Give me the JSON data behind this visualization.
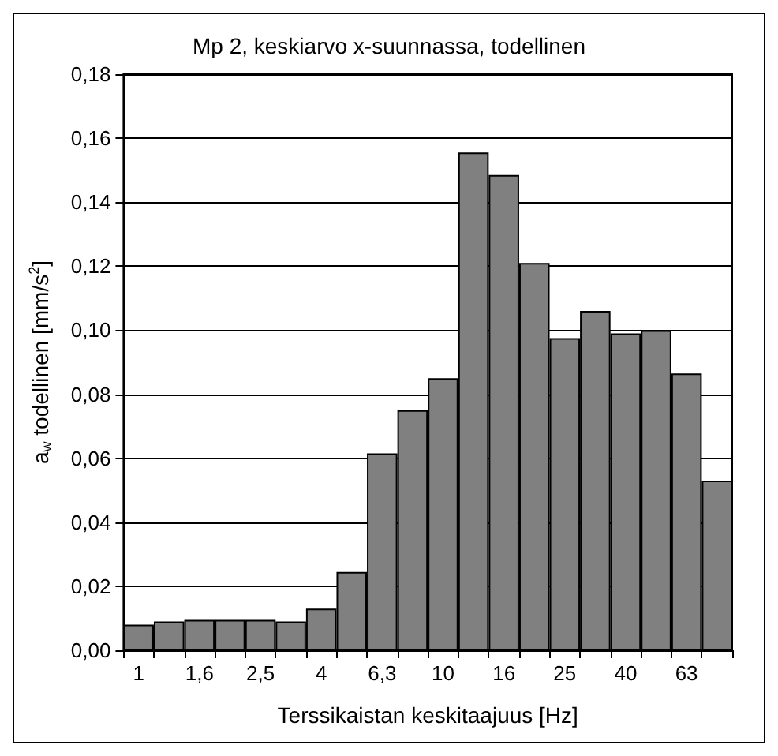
{
  "chart_data": {
    "type": "bar",
    "title": "Mp 2, keskiarvo x-suunnassa, todellinen",
    "xlabel": "Terssikaistan keskitaajuus [Hz]",
    "ylabel": "a$_{w}$ todellinen [mm/s$^{2}$]",
    "categories": [
      "1",
      null,
      "1,6",
      null,
      "2,5",
      null,
      "4",
      null,
      "6,3",
      null,
      "10",
      null,
      "16",
      null,
      "25",
      null,
      "40",
      null,
      "63",
      null
    ],
    "values": [
      0.008,
      0.009,
      0.0095,
      0.0095,
      0.0095,
      0.009,
      0.013,
      0.0245,
      0.0615,
      0.075,
      0.085,
      0.1555,
      0.1485,
      0.121,
      0.0975,
      0.106,
      0.099,
      0.1,
      0.0865,
      0.053
    ],
    "color": "#808080",
    "ylim": [
      0,
      0.18
    ],
    "yticks": [
      {
        "value": 0,
        "label": "0,00"
      },
      {
        "value": 0.02,
        "label": "0,02"
      },
      {
        "value": 0.04,
        "label": "0,04"
      },
      {
        "value": 0.06,
        "label": "0,06"
      },
      {
        "value": 0.08,
        "label": "0,08"
      },
      {
        "value": 0.1,
        "label": "0,10"
      },
      {
        "value": 0.12,
        "label": "0,12"
      },
      {
        "value": 0.14,
        "label": "0,14"
      },
      {
        "value": 0.16,
        "label": "0,16"
      },
      {
        "value": 0.18,
        "label": "0,18"
      }
    ],
    "grid": "y"
  }
}
